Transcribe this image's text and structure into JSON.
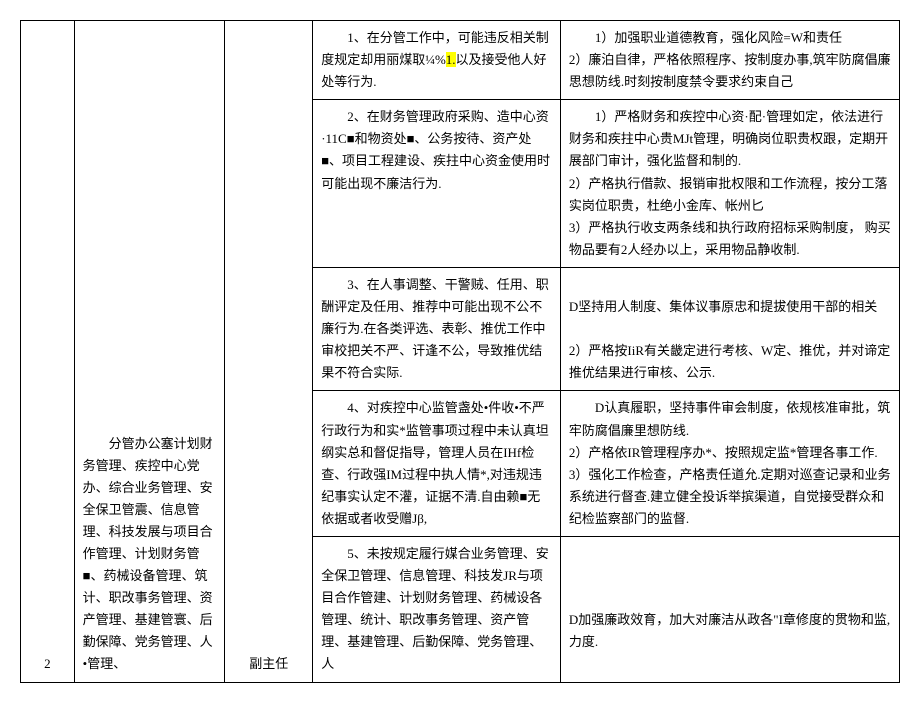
{
  "col1": "2",
  "col2_text": "分管办公塞计划财务管理、疾控中心党办、综合业务管理、安全保卫管震、信息管理、科技发展与项目合作管理、计划财务管■、药械设备管理、筑计、职改事务管理、资产管理、基建管寰、后勤保障、党务管理、人•管理、",
  "col3": "副主任",
  "rows": [
    {
      "c4_prefix": "1、在分管工作中，可能违反相关制度规定却用丽煤取¼%",
      "c4_hl": "1.",
      "c4_suffix": "以及接受他人好处等行为.",
      "c5": "1）加强职业道德教育，强化风险=W和责任\n2）廉泊自律，严格依照程序、按制度办事,筑牢防腐倡廉思想防线.时刻按制度禁令要求约束自己"
    },
    {
      "c4": "2、在财务管理政府采购、造中心资·11C■和物资处■、公务按待、资产处■、项目工程建设、疾拄中心资金使用时可能出现不廉洁行为.",
      "c5": "1）严格财务和疾控中心资·配·管理如定，依法进行财务和疾拄中心贵MJt管理，明确岗位职贵权跟，定期开展部门审计，强化监督和制的.\n2）产格执行借款、报销审批权限和工作流程，按分工落实岗位职贵，杜绝小金库、帐州匕\n3）严格执行收支两条线和执行政府招标采购制度，  购买物品要有2人经办以上，采用物品静收制."
    },
    {
      "c4": "3、在人事调整、干警贼、任用、职酬评定及任用、推荐中可能出现不公不廉行为.在各类评选、表彰、推优工作中审校把关不严、讦逢不公，导致推优结果不符合实际.",
      "c5": "\nD坚持用人制度、集体议事原忠和提拔使用干部的相关\n\n2）严格按IiR有关畿定进行考核、W定、推优，并对谛定推优结果进行审核、公示."
    },
    {
      "c4": "4、对疾控中心监管盏处•件收•不严行政行为和实*监管事项过程中未认真坦纲实总和督促指导，管理人员在IHf检查、行政强IM过程中执人情*,对违规违纪事实认定不灌，证据不清.自由赖■无依据或者收受赠Jβ,",
      "c5": "D认真履职，坚持事件审会制度，依规核准审批，筑牢防腐倡廉里想防线.\n2）产格依IR管理程序办*、按照规定监*管理各事工作.\n3）强化工作检查，产格责任道允.定期对巡查记录和业务系统进行督查.建立健全投诉举摈渠道，自觉接受群众和纪检监察部门的监督."
    },
    {
      "c4": "5、未按规定履行媒合业务管理、安全保卫管理、信息管理、科技发JR与项目合作管建、计划财务管理、药械设各管理、统计、职改事务管理、资产管理、基建管理、后勤保障、党务管理、人",
      "c5": "\n\n\nD加强廉政效育，加大对廉洁从政各\"I章修度的贯物和监,力度."
    }
  ]
}
